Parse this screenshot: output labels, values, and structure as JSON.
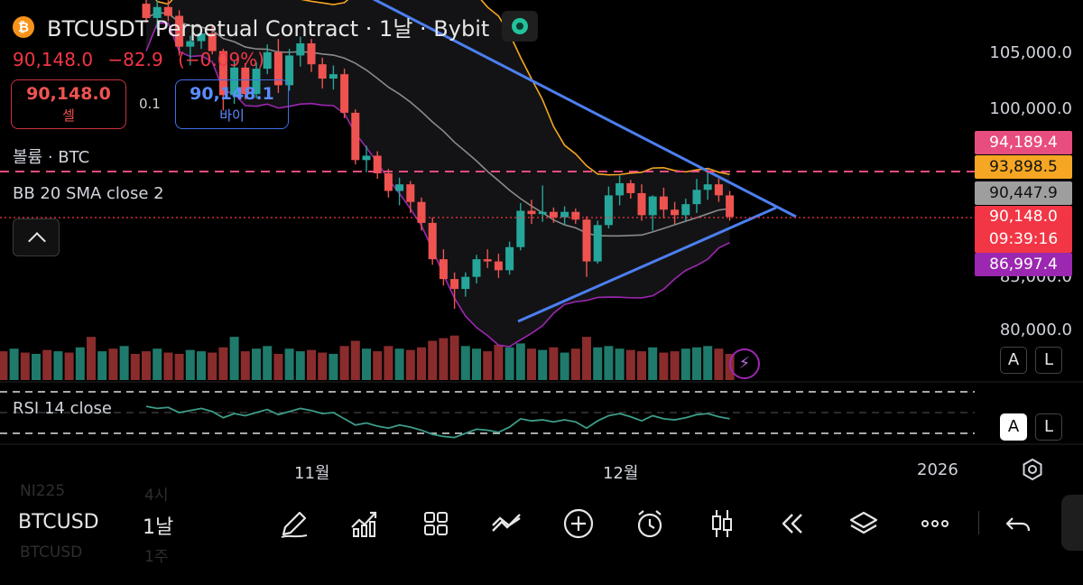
{
  "header": {
    "title": "BTCUSDT Perpetual Contract · 1날 · Bybit",
    "coin_glyph": "₿",
    "last": "90,148.0",
    "change": "−82.9",
    "change_pct": "(−0.09%)",
    "live_indicator_color": "#22c39a"
  },
  "trade": {
    "sell_price": "90,148.0",
    "sell_label": "셀",
    "spread": "0.1",
    "buy_price": "90,148.1",
    "buy_label": "바이"
  },
  "indicators": {
    "volume": "볼륨 · BTC",
    "bb": "BB 20 SMA close 2",
    "rsi": "RSI 14 close"
  },
  "price_axis": {
    "ticks": [
      "105,000.0",
      "100,000.0",
      "85,000.0",
      "80,000.0"
    ],
    "tags": {
      "upper": "94,189.4",
      "middle": "93,898.5",
      "basis": "90,447.9",
      "current": "90,148.0",
      "countdown": "09:39:16",
      "lower": "86,997.4"
    },
    "tag_colors": {
      "upper": "#e84d7f",
      "middle": "#f5a623",
      "basis": "#9e9e9e",
      "current": "#f23645",
      "lower": "#9c27b0"
    }
  },
  "scale_buttons": {
    "a": "A",
    "l": "L"
  },
  "time_axis": {
    "labels": [
      "11월",
      "12월",
      "2026"
    ]
  },
  "toolbar": {
    "symbol": "BTCUSD",
    "interval": "1날",
    "icons": [
      "draw-icon",
      "indicators-icon",
      "templates-icon",
      "compare-icon",
      "add-icon",
      "alert-icon",
      "chart-type-icon",
      "replay-icon",
      "layers-icon",
      "more-icon",
      "undo-icon"
    ]
  },
  "background_list": {
    "row1_name": "NI225",
    "row1_value": "4시",
    "row2_name": "BTCUSD",
    "row2_value": "1주"
  },
  "chart_data": {
    "type": "candlestick",
    "symbol": "BTCUSDT",
    "interval": "1D",
    "y_range": [
      78000,
      108000
    ],
    "up_color": "#26a69a",
    "down_color": "#ef5350",
    "candles": [
      [
        109500,
        110500,
        107800,
        108200
      ],
      [
        108200,
        109800,
        107200,
        109200
      ],
      [
        109200,
        110200,
        107900,
        108400
      ],
      [
        108400,
        108900,
        104800,
        105600
      ],
      [
        105600,
        106600,
        103900,
        106100
      ],
      [
        106100,
        107200,
        105400,
        106800
      ],
      [
        106800,
        107500,
        104900,
        105200
      ],
      [
        105200,
        105400,
        99800,
        101200
      ],
      [
        101200,
        104300,
        100400,
        103700
      ],
      [
        103700,
        104100,
        100800,
        101300
      ],
      [
        101300,
        104200,
        100900,
        103600
      ],
      [
        103600,
        105800,
        103100,
        105100
      ],
      [
        105100,
        106300,
        101400,
        102100
      ],
      [
        102100,
        105400,
        101600,
        104800
      ],
      [
        104800,
        106500,
        103800,
        105900
      ],
      [
        105900,
        106300,
        103300,
        104000
      ],
      [
        104000,
        104600,
        101800,
        102700
      ],
      [
        102700,
        103900,
        101700,
        103100
      ],
      [
        103100,
        103600,
        99100,
        99600
      ],
      [
        99600,
        99900,
        94900,
        95300
      ],
      [
        95300,
        96600,
        94200,
        95700
      ],
      [
        95700,
        96100,
        93600,
        94100
      ],
      [
        94100,
        94500,
        91900,
        92500
      ],
      [
        92500,
        93700,
        91200,
        93100
      ],
      [
        93100,
        93400,
        90500,
        91500
      ],
      [
        91500,
        91900,
        88900,
        89600
      ],
      [
        89600,
        90100,
        85800,
        86300
      ],
      [
        86300,
        87200,
        83900,
        84500
      ],
      [
        84500,
        85100,
        81800,
        83600
      ],
      [
        83600,
        85100,
        82900,
        84700
      ],
      [
        84700,
        86700,
        84100,
        86300
      ],
      [
        86300,
        87200,
        85500,
        86100
      ],
      [
        86100,
        86800,
        84600,
        85300
      ],
      [
        85300,
        87900,
        84900,
        87400
      ],
      [
        87400,
        91400,
        87100,
        90700
      ],
      [
        90700,
        91700,
        89500,
        90400
      ],
      [
        90400,
        93000,
        89700,
        90600
      ],
      [
        90600,
        91000,
        89600,
        90100
      ],
      [
        90100,
        91100,
        89400,
        90600
      ],
      [
        90600,
        90900,
        89500,
        89900
      ],
      [
        89900,
        90200,
        84700,
        86100
      ],
      [
        86100,
        89800,
        85900,
        89400
      ],
      [
        89400,
        92900,
        89100,
        92100
      ],
      [
        92100,
        93900,
        91200,
        93200
      ],
      [
        93200,
        93500,
        91800,
        92300
      ],
      [
        92300,
        93100,
        89800,
        90300
      ],
      [
        90300,
        92100,
        88900,
        92000
      ],
      [
        92000,
        92800,
        90000,
        90800
      ],
      [
        90800,
        91500,
        89500,
        90300
      ],
      [
        90300,
        91800,
        89800,
        91300
      ],
      [
        91300,
        93600,
        90500,
        92600
      ],
      [
        92600,
        94300,
        91700,
        93100
      ],
      [
        93100,
        93600,
        91500,
        92100
      ],
      [
        92100,
        92500,
        89800,
        90148
      ]
    ],
    "bb_lower_annotation": "86,997.4",
    "bb_upper_annotation": "94,189.4",
    "rsi": [
      56,
      54,
      55,
      50,
      52,
      54,
      51,
      45,
      49,
      47,
      50,
      53,
      48,
      51,
      54,
      52,
      49,
      50,
      44,
      38,
      40,
      37,
      35,
      38,
      36,
      33,
      29,
      27,
      26,
      30,
      34,
      33,
      31,
      36,
      44,
      42,
      43,
      41,
      43,
      41,
      35,
      42,
      47,
      49,
      46,
      42,
      47,
      44,
      43,
      45,
      48,
      49,
      46,
      44
    ],
    "volume": [
      22,
      24,
      21,
      20,
      23,
      22,
      21,
      25,
      33,
      22,
      24,
      26,
      20,
      24,
      22,
      23,
      21,
      20,
      26,
      30,
      24,
      22,
      26,
      24,
      23,
      25,
      30,
      32,
      34,
      26,
      24,
      22,
      27,
      25,
      28,
      24,
      23,
      25,
      21,
      24,
      33,
      25,
      26,
      24,
      23,
      22,
      25,
      21,
      22,
      24,
      25,
      26,
      24,
      20
    ]
  }
}
